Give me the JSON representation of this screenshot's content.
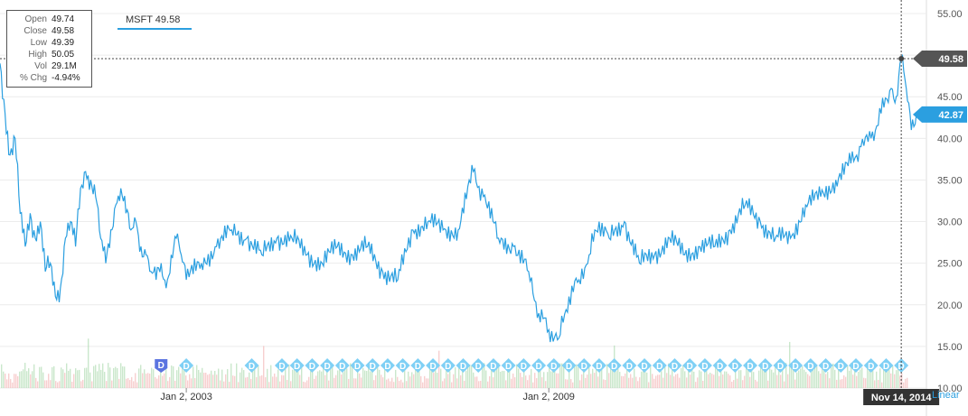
{
  "legend": {
    "series_label": "MSFT 49.58"
  },
  "tooltip": {
    "rows": [
      {
        "key": "Open",
        "value": "49.74"
      },
      {
        "key": "Close",
        "value": "49.58"
      },
      {
        "key": "Low",
        "value": "49.39"
      },
      {
        "key": "High",
        "value": "50.05"
      },
      {
        "key": "Vol",
        "value": "29.1M"
      },
      {
        "key": "% Chg",
        "value": "-4.94%"
      }
    ]
  },
  "crosshair": {
    "date_label": "Nov 14, 2014",
    "price_label": "49.58",
    "price": 49.58
  },
  "current_price": {
    "label": "42.87",
    "value": 42.87
  },
  "scale_link": "Linear",
  "colors": {
    "line": "#2b9fe0",
    "crosshair_tag": "#555555",
    "current_tag": "#2b9fe0",
    "dividend_flag": "#7fd0f5",
    "earnings_flag": "#5b74e0",
    "vol_up": "#9fd3a3",
    "vol_down": "#f0a8a8"
  },
  "chart_data": {
    "type": "line",
    "title": "",
    "xlabel": "",
    "ylabel": "",
    "ylim": [
      10,
      55
    ],
    "y_ticks": [
      "55.00",
      "50.00",
      "45.00",
      "40.00",
      "35.00",
      "30.00",
      "25.00",
      "20.00",
      "15.00",
      "10.00"
    ],
    "y_tick_values": [
      55,
      50,
      45,
      40,
      35,
      30,
      25,
      20,
      15,
      10
    ],
    "xlim": [
      "1999-12",
      "2015-04"
    ],
    "x_ticks": [
      {
        "date": "2003-01",
        "label": "Jan 2, 2003"
      },
      {
        "date": "2009-01",
        "label": "Jan 2, 2009"
      }
    ],
    "series": [
      {
        "name": "MSFT",
        "x": [
          "1999-12",
          "2000-01",
          "2000-02",
          "2000-03",
          "2000-04",
          "2000-05",
          "2000-06",
          "2000-07",
          "2000-08",
          "2000-09",
          "2000-10",
          "2000-11",
          "2000-12",
          "2001-01",
          "2001-02",
          "2001-03",
          "2001-04",
          "2001-05",
          "2001-06",
          "2001-07",
          "2001-08",
          "2001-09",
          "2001-10",
          "2001-11",
          "2001-12",
          "2002-01",
          "2002-02",
          "2002-03",
          "2002-04",
          "2002-05",
          "2002-06",
          "2002-07",
          "2002-08",
          "2002-09",
          "2002-10",
          "2002-11",
          "2002-12",
          "2003-01",
          "2003-04",
          "2003-07",
          "2003-10",
          "2004-01",
          "2004-04",
          "2004-07",
          "2004-10",
          "2005-01",
          "2005-04",
          "2005-07",
          "2005-10",
          "2006-01",
          "2006-04",
          "2006-07",
          "2006-10",
          "2007-01",
          "2007-04",
          "2007-07",
          "2007-10",
          "2007-12",
          "2008-03",
          "2008-06",
          "2008-09",
          "2008-11",
          "2009-01",
          "2009-03",
          "2009-05",
          "2009-07",
          "2009-09",
          "2009-11",
          "2010-01",
          "2010-04",
          "2010-07",
          "2010-10",
          "2011-01",
          "2011-04",
          "2011-07",
          "2011-10",
          "2012-01",
          "2012-04",
          "2012-07",
          "2012-10",
          "2013-01",
          "2013-04",
          "2013-07",
          "2013-10",
          "2014-01",
          "2014-03",
          "2014-05",
          "2014-07",
          "2014-09",
          "2014-10",
          "2014-11",
          "2014-12",
          "2015-01",
          "2015-02"
        ],
        "values": [
          49,
          43,
          38,
          40,
          31,
          27,
          31,
          28,
          30,
          24,
          25,
          21,
          22,
          28,
          30,
          27,
          34,
          36,
          35,
          33,
          28,
          25,
          29,
          32,
          34,
          31,
          29,
          30,
          27,
          26,
          24,
          23,
          25,
          22,
          26,
          28,
          26,
          23,
          25,
          27,
          29,
          28,
          26,
          28,
          28,
          26,
          25,
          27,
          26,
          27,
          24,
          23,
          29,
          30,
          29,
          29,
          36,
          33,
          28,
          27,
          24,
          19,
          17,
          16,
          21,
          23,
          26,
          30,
          28,
          30,
          25,
          26,
          28,
          26,
          27,
          27,
          29,
          32,
          30,
          28,
          28,
          32,
          33,
          35,
          37,
          39,
          40,
          43,
          46,
          45,
          49.58,
          46,
          41,
          42.87
        ]
      }
    ],
    "dividend_flags": [
      "2003-01",
      "2004-02",
      "2004-08",
      "2004-11",
      "2005-02",
      "2005-05",
      "2005-08",
      "2005-11",
      "2006-02",
      "2006-05",
      "2006-08",
      "2006-11",
      "2007-02",
      "2007-05",
      "2007-08",
      "2007-11",
      "2008-02",
      "2008-05",
      "2008-08",
      "2008-11",
      "2009-02",
      "2009-05",
      "2009-08",
      "2009-11",
      "2010-02",
      "2010-05",
      "2010-08",
      "2010-11",
      "2011-02",
      "2011-05",
      "2011-08",
      "2011-11",
      "2012-02",
      "2012-05",
      "2012-08",
      "2012-11",
      "2013-02",
      "2013-05",
      "2013-08",
      "2013-11",
      "2014-02",
      "2014-05",
      "2014-08",
      "2014-11"
    ],
    "earnings_flags": [
      "2002-08"
    ],
    "flag_label": "D"
  }
}
